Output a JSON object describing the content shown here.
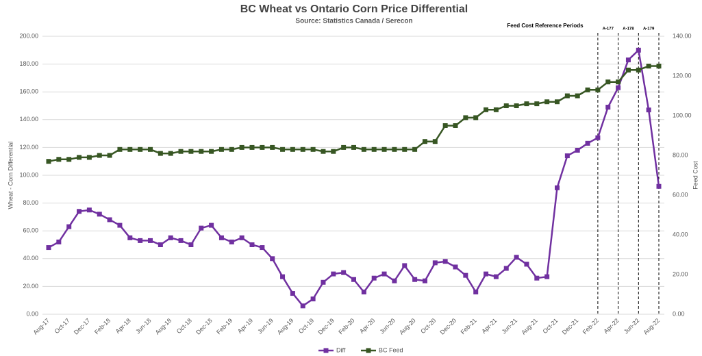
{
  "chart_data": {
    "type": "line",
    "title": "BC Wheat vs Ontario Corn Price Differential",
    "subtitle": "Source: Statistics Canada / Serecon",
    "y_label": "Wheat - Corn Differential",
    "y2_label": "Feed Cost",
    "annotation_title": "Feed Cost Reference Periods",
    "annotations": [
      "A-177",
      "A-178",
      "A-179"
    ],
    "reference_lines": [
      "Feb-22",
      "Apr-22",
      "Jun-22",
      "Aug-22"
    ],
    "categories": [
      "Aug-17",
      null,
      "Oct-17",
      null,
      "Dec-17",
      null,
      "Feb-18",
      null,
      "Apr-18",
      null,
      "Jun-18",
      null,
      "Aug-18",
      null,
      "Oct-18",
      null,
      "Dec-18",
      null,
      "Feb-19",
      null,
      "Apr-19",
      null,
      "Jun-19",
      null,
      "Aug-19",
      null,
      "Oct-19",
      null,
      "Dec-19",
      null,
      "Feb-20",
      null,
      "Apr-20",
      null,
      "Jun-20",
      null,
      "Aug-20",
      null,
      "Oct-20",
      null,
      "Dec-20",
      null,
      "Feb-21",
      null,
      "Apr-21",
      null,
      "Jun-21",
      null,
      "Aug-21",
      null,
      "Oct-21",
      null,
      "Dec-21",
      null,
      "Feb-22",
      null,
      "Apr-22",
      null,
      "Jun-22",
      null,
      "Aug-22"
    ],
    "series": [
      {
        "name": "Diff",
        "color": "#7030a0",
        "axis": "y",
        "values": [
          48,
          52,
          63,
          74,
          75,
          72,
          68,
          64,
          55,
          53,
          53,
          50,
          55,
          53,
          50,
          62,
          64,
          55,
          52,
          55,
          50,
          48,
          40,
          27,
          15,
          6,
          11,
          23,
          29,
          30,
          25,
          16,
          26,
          29,
          24,
          35,
          25,
          24,
          37,
          38,
          34,
          28,
          16,
          29,
          27,
          33,
          41,
          36,
          26,
          27,
          91,
          114,
          118,
          123,
          127,
          149,
          163,
          183,
          190,
          147,
          92
        ]
      },
      {
        "name": "BC Feed",
        "color": "#375623",
        "axis": "y2",
        "values": [
          77,
          78,
          78,
          79,
          79,
          80,
          80,
          83,
          83,
          83,
          83,
          81,
          81,
          82,
          82,
          82,
          82,
          83,
          83,
          84,
          84,
          84,
          84,
          83,
          83,
          83,
          83,
          82,
          82,
          84,
          84,
          83,
          83,
          83,
          83,
          83,
          83,
          87,
          87,
          95,
          95,
          99,
          99,
          103,
          103,
          105,
          105,
          106,
          106,
          107,
          107,
          110,
          110,
          113,
          113,
          117,
          117,
          123,
          123,
          125,
          125
        ]
      }
    ],
    "ylim": [
      0,
      200
    ],
    "yticks": [
      {
        "value": 0,
        "label": "0.00"
      },
      {
        "value": 20,
        "label": "20.00"
      },
      {
        "value": 40,
        "label": "40.00"
      },
      {
        "value": 60,
        "label": "60.00"
      },
      {
        "value": 80,
        "label": "80.00"
      },
      {
        "value": 100,
        "label": "100.00"
      },
      {
        "value": 120,
        "label": "120.00"
      },
      {
        "value": 140,
        "label": "140.00"
      },
      {
        "value": 160,
        "label": "160.00"
      },
      {
        "value": 180,
        "label": "180.00"
      },
      {
        "value": 200,
        "label": "200.00"
      }
    ],
    "y2lim": [
      0,
      140
    ],
    "y2ticks": [
      {
        "value": 0,
        "label": "0.00"
      },
      {
        "value": 20,
        "label": "20.00"
      },
      {
        "value": 40,
        "label": "40.00"
      },
      {
        "value": 60,
        "label": "60.00"
      },
      {
        "value": 80,
        "label": "80.00"
      },
      {
        "value": 100,
        "label": "100.00"
      },
      {
        "value": 120,
        "label": "120.00"
      },
      {
        "value": 140,
        "label": "140.00"
      }
    ],
    "grid": true,
    "legend": "bottom"
  }
}
